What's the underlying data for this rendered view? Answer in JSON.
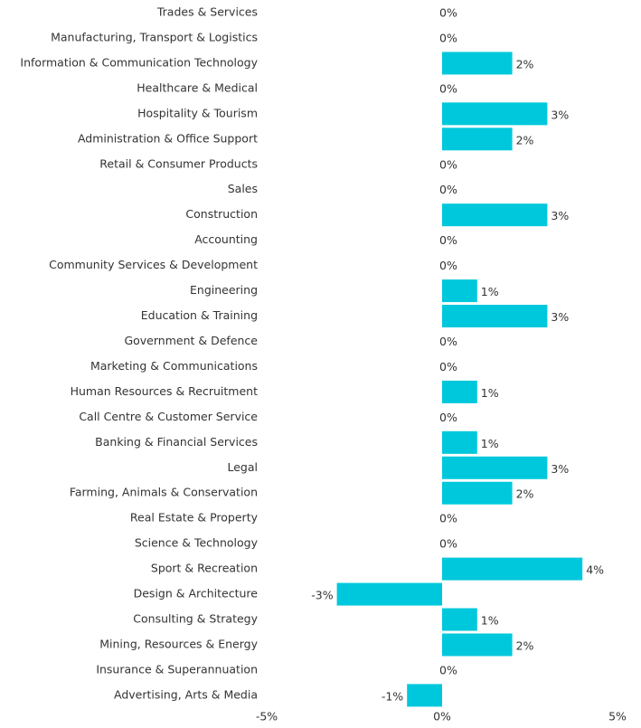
{
  "chart_data": {
    "type": "barh",
    "categories": [
      "Trades & Services",
      "Manufacturing, Transport & Logistics",
      "Information & Communication Technology",
      "Healthcare & Medical",
      "Hospitality & Tourism",
      "Administration & Office Support",
      "Retail & Consumer Products",
      "Sales",
      "Construction",
      "Accounting",
      "Community Services & Development",
      "Engineering",
      "Education & Training",
      "Government & Defence",
      "Marketing & Communications",
      "Human Resources & Recruitment",
      "Call Centre & Customer Service",
      "Banking & Financial Services",
      "Legal",
      "Farming, Animals & Conservation",
      "Real Estate & Property",
      "Science & Technology",
      "Sport & Recreation",
      "Design & Architecture",
      "Consulting & Strategy",
      "Mining, Resources & Energy",
      "Insurance & Superannuation",
      "Advertising, Arts & Media"
    ],
    "values": [
      0,
      0,
      2,
      0,
      3,
      2,
      0,
      0,
      3,
      0,
      0,
      1,
      3,
      0,
      0,
      1,
      0,
      1,
      3,
      2,
      0,
      0,
      4,
      -3,
      1,
      2,
      0,
      -1
    ],
    "value_labels": [
      "0%",
      "0%",
      "2%",
      "0%",
      "3%",
      "2%",
      "0%",
      "0%",
      "3%",
      "0%",
      "0%",
      "1%",
      "3%",
      "0%",
      "0%",
      "1%",
      "0%",
      "1%",
      "3%",
      "2%",
      "0%",
      "0%",
      "4%",
      "-3%",
      "1%",
      "2%",
      "0%",
      "-1%"
    ],
    "color": "#00c8dc",
    "xlim": [
      -5,
      5
    ],
    "xticks": [
      {
        "value": -5,
        "label": "-5%"
      },
      {
        "value": 0,
        "label": "0%"
      },
      {
        "value": 5,
        "label": "5%"
      }
    ]
  }
}
